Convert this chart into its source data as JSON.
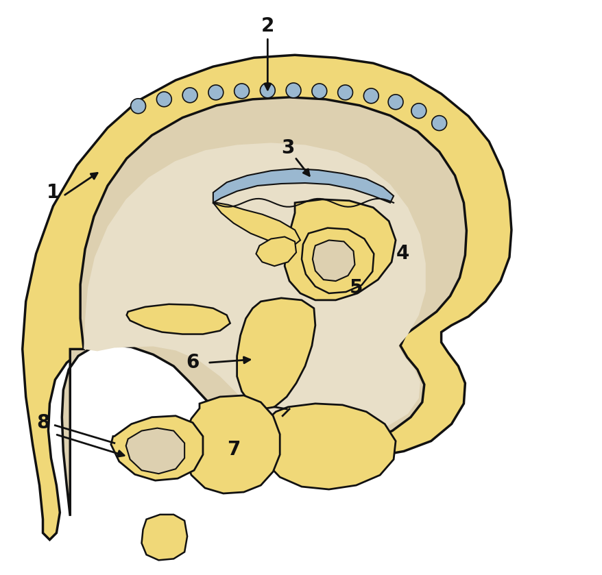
{
  "bg_color": "#ffffff",
  "skull_color": "#f0d878",
  "brain_color": "#ddd0b0",
  "brain_light_color": "#e8dfc8",
  "blue_color": "#9ab8d0",
  "dot_color": "#9ab8d0",
  "outline_color": "#111111",
  "label_color": "#111111",
  "label_fontsize": 20,
  "arrow_color": "#111111"
}
